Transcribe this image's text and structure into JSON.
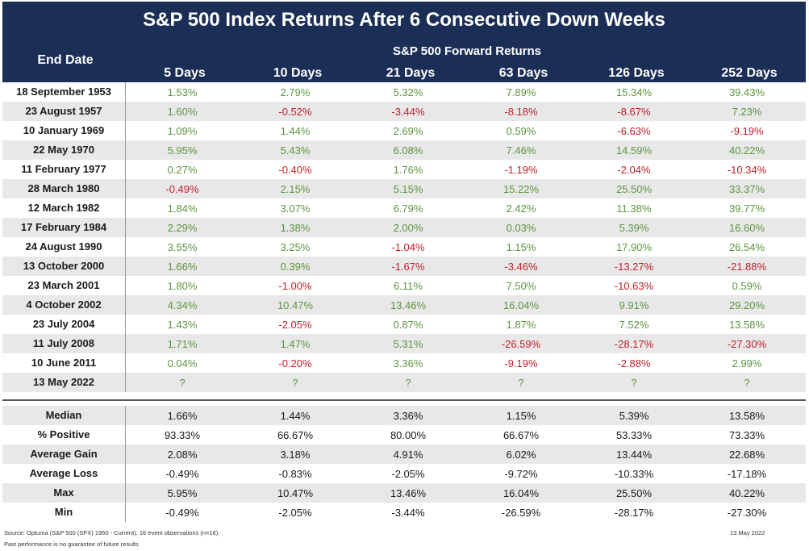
{
  "title": "S&P 500 Index Returns After 6 Consecutive Down Weeks",
  "end_date_label": "End Date",
  "forward_label": "S&P 500 Forward Returns",
  "columns": [
    "5 Days",
    "10 Days",
    "21 Days",
    "63 Days",
    "126 Days",
    "252 Days"
  ],
  "chart_data": {
    "type": "table",
    "title": "S&P 500 Index Returns After 6 Consecutive Down Weeks",
    "columns": [
      "5 Days",
      "10 Days",
      "21 Days",
      "63 Days",
      "126 Days",
      "252 Days"
    ],
    "rows": [
      {
        "label": "18 September 1953",
        "values": [
          "1.53%",
          "2.79%",
          "5.32%",
          "7.89%",
          "15.34%",
          "39.43%"
        ]
      },
      {
        "label": "23 August 1957",
        "values": [
          "1.60%",
          "-0.52%",
          "-3.44%",
          "-8.18%",
          "-8.67%",
          "7.23%"
        ]
      },
      {
        "label": "10 January 1969",
        "values": [
          "1.09%",
          "1.44%",
          "2.69%",
          "0.59%",
          "-6.63%",
          "-9.19%"
        ]
      },
      {
        "label": "22 May 1970",
        "values": [
          "5.95%",
          "5.43%",
          "6.08%",
          "7.46%",
          "14.59%",
          "40.22%"
        ]
      },
      {
        "label": "11 February 1977",
        "values": [
          "0.27%",
          "-0.40%",
          "1.76%",
          "-1.19%",
          "-2.04%",
          "-10.34%"
        ]
      },
      {
        "label": "28 March 1980",
        "values": [
          "-0.49%",
          "2.15%",
          "5.15%",
          "15.22%",
          "25.50%",
          "33.37%"
        ]
      },
      {
        "label": "12 March 1982",
        "values": [
          "1.84%",
          "3.07%",
          "6.79%",
          "2.42%",
          "11.38%",
          "39.77%"
        ]
      },
      {
        "label": "17 February 1984",
        "values": [
          "2.29%",
          "1.38%",
          "2.00%",
          "0.03%",
          "5.39%",
          "16.60%"
        ]
      },
      {
        "label": "24 August 1990",
        "values": [
          "3.55%",
          "3.25%",
          "-1.04%",
          "1.15%",
          "17.90%",
          "26.54%"
        ]
      },
      {
        "label": "13 October 2000",
        "values": [
          "1.66%",
          "0.39%",
          "-1.67%",
          "-3.46%",
          "-13.27%",
          "-21.88%"
        ]
      },
      {
        "label": "23 March 2001",
        "values": [
          "1.80%",
          "-1.00%",
          "6.11%",
          "7.50%",
          "-10.63%",
          "0.59%"
        ]
      },
      {
        "label": "4 October 2002",
        "values": [
          "4.34%",
          "10.47%",
          "13.46%",
          "16.04%",
          "9.91%",
          "29.20%"
        ]
      },
      {
        "label": "23 July 2004",
        "values": [
          "1.43%",
          "-2.05%",
          "0.87%",
          "1.87%",
          "7.52%",
          "13.58%"
        ]
      },
      {
        "label": "11 July 2008",
        "values": [
          "1.71%",
          "1.47%",
          "5.31%",
          "-26.59%",
          "-28.17%",
          "-27.30%"
        ]
      },
      {
        "label": "10 June 2011",
        "values": [
          "0.04%",
          "-0.20%",
          "3.36%",
          "-9.19%",
          "-2.88%",
          "2.99%"
        ]
      },
      {
        "label": "13 May 2022",
        "values": [
          "?",
          "?",
          "?",
          "?",
          "?",
          "?"
        ]
      }
    ],
    "stats": [
      {
        "label": "Median",
        "values": [
          "1.66%",
          "1.44%",
          "3.36%",
          "1.15%",
          "5.39%",
          "13.58%"
        ]
      },
      {
        "label": "% Positive",
        "values": [
          "93.33%",
          "66.67%",
          "80.00%",
          "66.67%",
          "53.33%",
          "73.33%"
        ]
      },
      {
        "label": "Average Gain",
        "values": [
          "2.08%",
          "3.18%",
          "4.91%",
          "6.02%",
          "13.44%",
          "22.68%"
        ]
      },
      {
        "label": "Average Loss",
        "values": [
          "-0.49%",
          "-0.83%",
          "-2.05%",
          "-9.72%",
          "-10.33%",
          "-17.18%"
        ]
      },
      {
        "label": "Max",
        "values": [
          "5.95%",
          "10.47%",
          "13.46%",
          "16.04%",
          "25.50%",
          "40.22%"
        ]
      },
      {
        "label": "Min",
        "values": [
          "-0.49%",
          "-2.05%",
          "-3.44%",
          "-26.59%",
          "-28.17%",
          "-27.30%"
        ]
      }
    ]
  },
  "colors": {
    "header_bg": "#1a2e56",
    "positive": "#5d9440",
    "negative": "#c0202a",
    "stripe": "#e8e8e8"
  },
  "source": "Source: Optuma (S&P 500 (SPX) 1950 - Current). 16 event observations (n=16).",
  "disclaimer": "Past performance is no guarantee of future results",
  "date": "13 May 2022"
}
